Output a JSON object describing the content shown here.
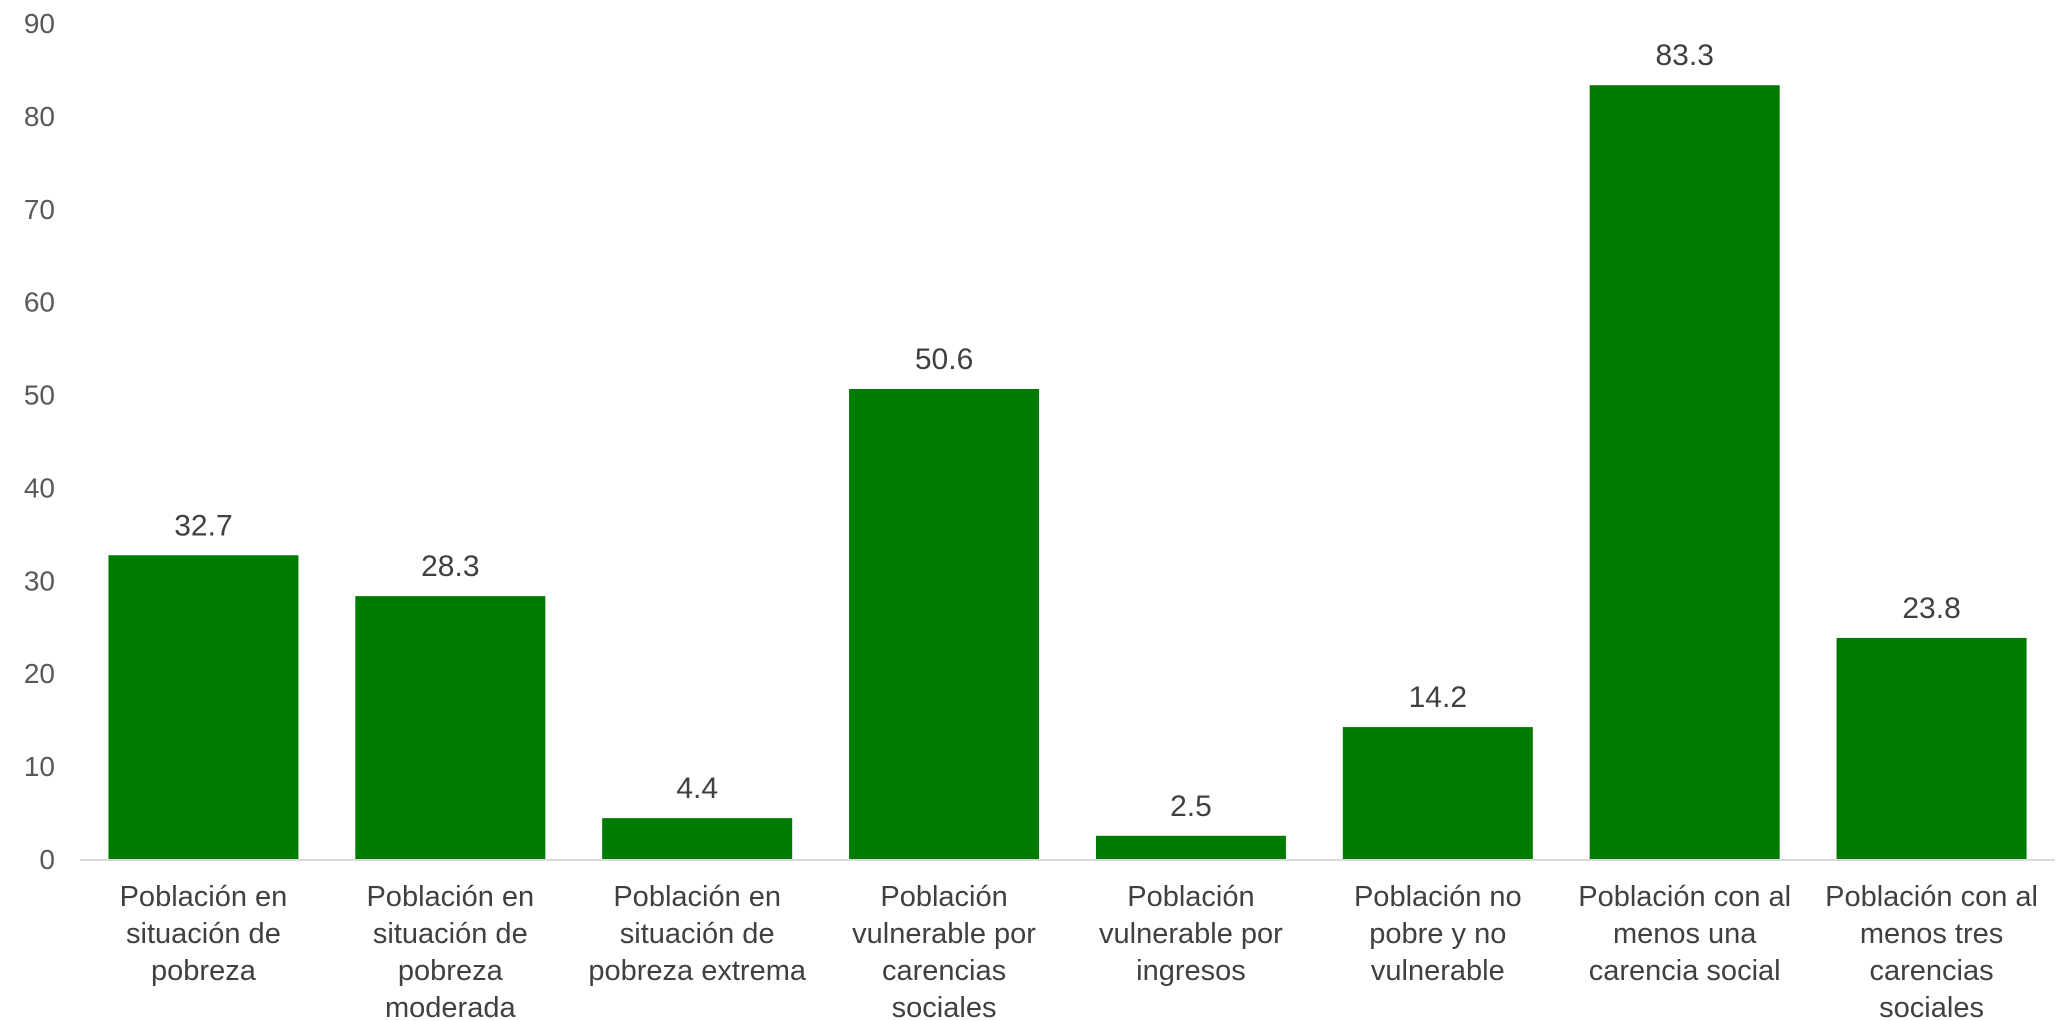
{
  "chart_data": {
    "type": "bar",
    "title": "",
    "xlabel": "",
    "ylabel": "",
    "ylim": [
      0,
      90
    ],
    "yticks": [
      0,
      10,
      20,
      30,
      40,
      50,
      60,
      70,
      80,
      90
    ],
    "grid": false,
    "legend": "none",
    "bar_color": "#007A00",
    "categories": [
      [
        "Población en",
        "situación de",
        "pobreza"
      ],
      [
        "Población en",
        "situación de",
        "pobreza",
        "moderada"
      ],
      [
        "Población en",
        "situación de",
        "pobreza extrema"
      ],
      [
        "Población",
        "vulnerable por",
        "carencias",
        "sociales"
      ],
      [
        "Población",
        "vulnerable por",
        "ingresos"
      ],
      [
        "Población no",
        "pobre y no",
        "vulnerable"
      ],
      [
        "Población con al",
        "menos una",
        "carencia social"
      ],
      [
        "Población con al",
        "menos tres",
        "carencias",
        "sociales"
      ]
    ],
    "values": [
      32.7,
      28.3,
      4.4,
      50.6,
      2.5,
      14.2,
      83.3,
      23.8
    ],
    "data_labels": [
      "32.7",
      "28.3",
      "4.4",
      "50.6",
      "2.5",
      "14.2",
      "83.3",
      "23.8"
    ]
  }
}
